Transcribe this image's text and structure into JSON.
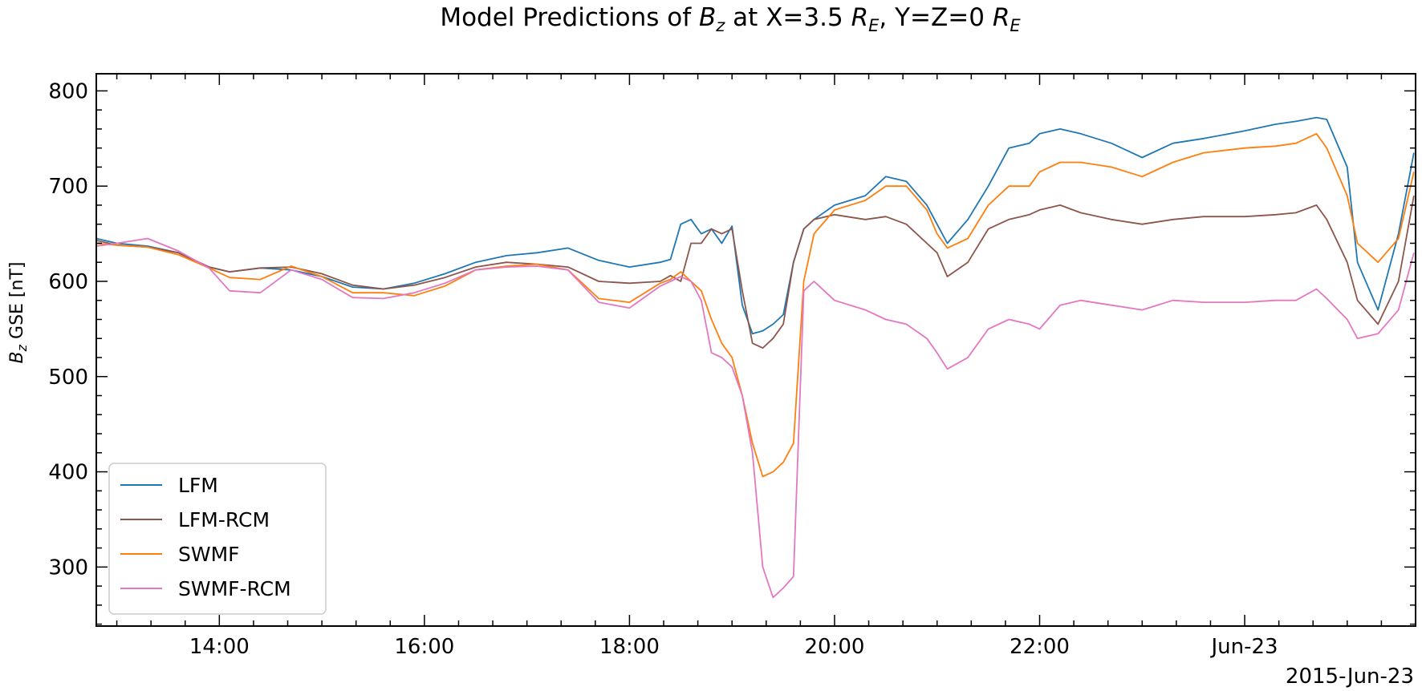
{
  "chart_data": {
    "type": "line",
    "title_parts": [
      "Model Predictions of ",
      "B",
      "z",
      " at X=3.5 ",
      "R",
      "E",
      ", Y=Z=0 ",
      "R",
      "E"
    ],
    "ylabel_parts": [
      "B",
      "z",
      " GSE [nT]"
    ],
    "x_offset_label": "2015-Jun-23",
    "x_ticks": [
      {
        "t": 14,
        "label": "14:00"
      },
      {
        "t": 16,
        "label": "16:00"
      },
      {
        "t": 18,
        "label": "18:00"
      },
      {
        "t": 20,
        "label": "20:00"
      },
      {
        "t": 22,
        "label": "22:00"
      },
      {
        "t": 24,
        "label": "Jun-23"
      }
    ],
    "y_ticks": [
      300,
      400,
      500,
      600,
      700,
      800
    ],
    "xlim": [
      "2015-06-22 12:48",
      "2015-06-23 01:40"
    ],
    "ylim": [
      238,
      818
    ],
    "grid": false,
    "legend_position": "lower-left",
    "time_unit": "hours",
    "x": [
      12.8,
      13.0,
      13.3,
      13.6,
      13.9,
      14.1,
      14.4,
      14.7,
      15.0,
      15.3,
      15.6,
      15.9,
      16.2,
      16.5,
      16.8,
      17.1,
      17.4,
      17.7,
      18.0,
      18.3,
      18.4,
      18.5,
      18.6,
      18.7,
      18.8,
      18.9,
      19.0,
      19.1,
      19.2,
      19.3,
      19.4,
      19.5,
      19.6,
      19.7,
      19.8,
      20.0,
      20.3,
      20.5,
      20.7,
      20.9,
      21.0,
      21.1,
      21.3,
      21.5,
      21.7,
      21.9,
      22.0,
      22.2,
      22.4,
      22.7,
      23.0,
      23.3,
      23.6,
      24.0,
      24.3,
      24.5,
      24.7,
      24.8,
      25.0,
      25.1,
      25.3,
      25.5,
      25.65
    ],
    "series": [
      {
        "name": "LFM",
        "color": "#1f77b4",
        "values": [
          645,
          640,
          637,
          630,
          615,
          610,
          614,
          612,
          605,
          594,
          592,
          598,
          608,
          620,
          627,
          630,
          635,
          622,
          615,
          620,
          623,
          660,
          665,
          650,
          655,
          640,
          658,
          575,
          545,
          548,
          555,
          565,
          620,
          655,
          665,
          680,
          690,
          710,
          705,
          680,
          660,
          640,
          665,
          700,
          740,
          745,
          755,
          760,
          755,
          745,
          730,
          745,
          750,
          758,
          765,
          768,
          772,
          770,
          720,
          620,
          570,
          650,
          735
        ]
      },
      {
        "name": "LFM-RCM",
        "color": "#8c564b",
        "values": [
          643,
          638,
          636,
          630,
          615,
          610,
          614,
          615,
          608,
          596,
          592,
          596,
          604,
          615,
          620,
          618,
          615,
          600,
          598,
          600,
          606,
          600,
          640,
          640,
          655,
          650,
          655,
          590,
          535,
          530,
          540,
          555,
          620,
          655,
          665,
          670,
          665,
          668,
          660,
          640,
          630,
          605,
          620,
          655,
          665,
          670,
          675,
          680,
          672,
          665,
          660,
          665,
          668,
          668,
          670,
          672,
          680,
          665,
          620,
          580,
          555,
          600,
          690
        ]
      },
      {
        "name": "SWMF",
        "color": "#ff7f0e",
        "values": [
          640,
          638,
          636,
          628,
          614,
          604,
          602,
          616,
          605,
          588,
          588,
          585,
          595,
          612,
          616,
          618,
          612,
          582,
          578,
          598,
          602,
          610,
          600,
          590,
          560,
          535,
          520,
          480,
          430,
          395,
          400,
          410,
          430,
          600,
          650,
          675,
          685,
          700,
          700,
          675,
          650,
          635,
          645,
          680,
          700,
          700,
          715,
          725,
          725,
          720,
          710,
          725,
          735,
          740,
          742,
          745,
          755,
          740,
          690,
          640,
          620,
          645,
          715
        ]
      },
      {
        "name": "SWMF-RCM",
        "color": "#e377c2",
        "values": [
          637,
          640,
          645,
          632,
          614,
          590,
          588,
          612,
          602,
          583,
          582,
          588,
          598,
          612,
          615,
          616,
          612,
          578,
          572,
          595,
          600,
          605,
          600,
          580,
          525,
          520,
          510,
          480,
          420,
          300,
          268,
          278,
          290,
          590,
          600,
          580,
          570,
          560,
          555,
          540,
          525,
          508,
          520,
          550,
          560,
          555,
          550,
          575,
          580,
          575,
          570,
          580,
          578,
          578,
          580,
          580,
          592,
          582,
          560,
          540,
          545,
          570,
          630
        ]
      }
    ]
  }
}
